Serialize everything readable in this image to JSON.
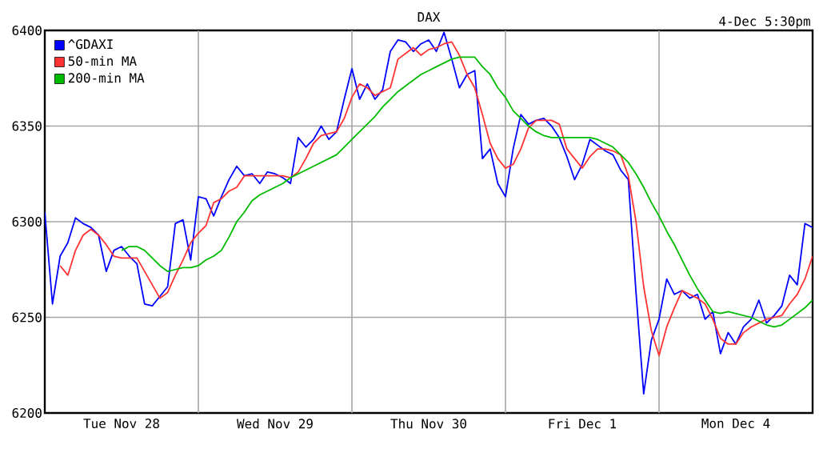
{
  "chart_data": {
    "type": "line",
    "title": "DAX",
    "subtitle": "4-Dec 5:30pm",
    "categories": [
      null,
      null,
      null,
      null,
      null,
      null,
      null,
      null,
      null,
      null,
      "Tue Nov 28",
      null,
      null,
      null,
      null,
      null,
      null,
      null,
      null,
      null,
      null,
      null,
      null,
      null,
      null,
      null,
      null,
      null,
      null,
      null,
      "Wed Nov 29",
      null,
      null,
      null,
      null,
      null,
      null,
      null,
      null,
      null,
      null,
      null,
      null,
      null,
      null,
      null,
      null,
      null,
      null,
      null,
      "Thu Nov 30",
      null,
      null,
      null,
      null,
      null,
      null,
      null,
      null,
      null,
      null,
      null,
      null,
      null,
      null,
      null,
      null,
      null,
      null,
      null,
      "Fri Dec  1",
      null,
      null,
      null,
      null,
      null,
      null,
      null,
      null,
      null,
      null,
      null,
      null,
      null,
      null,
      null,
      null,
      null,
      null,
      null,
      "Mon Dec  4",
      null,
      null,
      null,
      null,
      null,
      null,
      null,
      null,
      null,
      null
    ],
    "ylim": [
      6200,
      6400
    ],
    "yticks": [
      6200,
      6250,
      6300,
      6350,
      6400
    ],
    "grid": true,
    "legend": "top left",
    "marker": "none",
    "line_style": "solid",
    "series": [
      {
        "name": "^GDAXI",
        "color": "#0000ff",
        "values": [
          6305,
          6257,
          6282,
          6289,
          6302,
          6299,
          6297,
          6293,
          6274,
          6285,
          6287,
          6282,
          6278,
          6257,
          6256,
          6261,
          6266,
          6299,
          6301,
          6280,
          6313,
          6312,
          6303,
          6313,
          6322,
          6329,
          6324,
          6325,
          6320,
          6326,
          6325,
          6323,
          6320,
          6344,
          6339,
          6343,
          6350,
          6343,
          6347,
          6364,
          6380,
          6364,
          6372,
          6364,
          6369,
          6389,
          6395,
          6394,
          6389,
          6393,
          6395,
          6389,
          6399,
          6385,
          6370,
          6377,
          6379,
          6333,
          6338,
          6320,
          6313,
          6338,
          6356,
          6351,
          6353,
          6354,
          6350,
          6344,
          6334,
          6322,
          6330,
          6343,
          6340,
          6337,
          6335,
          6327,
          6322,
          6263,
          6210,
          6238,
          6249,
          6270,
          6262,
          6264,
          6260,
          6262,
          6249,
          6253,
          6231,
          6242,
          6236,
          6245,
          6249,
          6259,
          6247,
          6251,
          6256,
          6272,
          6267,
          6299,
          6297
        ]
      },
      {
        "name": "50-min MA",
        "color": "#ff3333",
        "values": [
          null,
          null,
          6277,
          6272,
          6285,
          6293,
          6296,
          6293,
          6288,
          6282,
          6281,
          6281,
          6281,
          6274,
          6267,
          6260,
          6263,
          6272,
          6280,
          6289,
          6294,
          6298,
          6310,
          6312,
          6316,
          6318,
          6324,
          6324,
          6324,
          6324,
          6324,
          6324,
          6323,
          6326,
          6333,
          6341,
          6345,
          6346,
          6347,
          6354,
          6365,
          6372,
          6370,
          6366,
          6368,
          6370,
          6385,
          6388,
          6391,
          6387,
          6390,
          6391,
          6393,
          6394,
          6387,
          6377,
          6370,
          6356,
          6341,
          6333,
          6328,
          6330,
          6338,
          6349,
          6353,
          6353,
          6353,
          6351,
          6338,
          6333,
          6328,
          6334,
          6338,
          6338,
          6337,
          6335,
          6324,
          6300,
          6266,
          6243,
          6230,
          6245,
          6255,
          6264,
          6262,
          6260,
          6257,
          6249,
          6239,
          6236,
          6236,
          6242,
          6245,
          6247,
          6249,
          6250,
          6251,
          6257,
          6262,
          6270,
          6282
        ]
      },
      {
        "name": "200-min MA",
        "color": "#00bb00",
        "values": [
          null,
          null,
          null,
          null,
          null,
          null,
          null,
          null,
          null,
          null,
          6285,
          6287,
          6287,
          6285,
          6281,
          6277,
          6274,
          6275,
          6276,
          6276,
          6277,
          6280,
          6282,
          6285,
          6292,
          6300,
          6305,
          6311,
          6314,
          6316,
          6318,
          6320,
          6323,
          6325,
          6327,
          6329,
          6331,
          6333,
          6335,
          6339,
          6343,
          6347,
          6351,
          6355,
          6360,
          6364,
          6368,
          6371,
          6374,
          6377,
          6379,
          6381,
          6383,
          6385,
          6386,
          6386,
          6386,
          6381,
          6377,
          6370,
          6365,
          6358,
          6354,
          6350,
          6347,
          6345,
          6344,
          6344,
          6344,
          6344,
          6344,
          6344,
          6343,
          6341,
          6339,
          6335,
          6331,
          6325,
          6318,
          6310,
          6303,
          6295,
          6288,
          6280,
          6272,
          6265,
          6259,
          6253,
          6252,
          6253,
          6252,
          6251,
          6250,
          6248,
          6246,
          6245,
          6246,
          6249,
          6252,
          6255,
          6259
        ]
      }
    ]
  }
}
